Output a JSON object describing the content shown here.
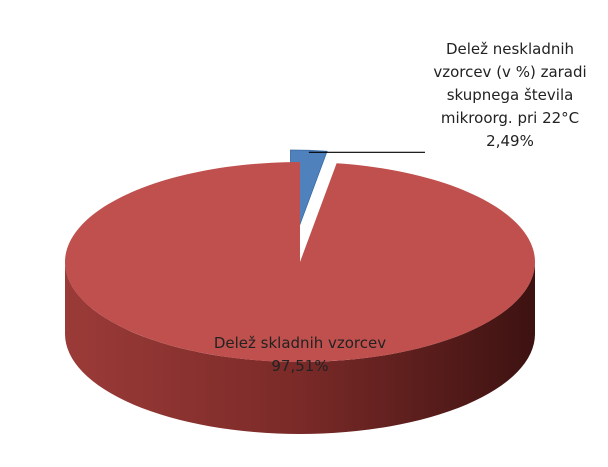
{
  "chart_data": {
    "type": "pie",
    "categories": [
      "Delež neskladnih vzorcev (v %) zaradi skupnega števila mikroorg. pri 22°C",
      "Delež skladnih vzorcev"
    ],
    "values": [
      2.49,
      97.51
    ],
    "value_labels": [
      "2,49%",
      "97,51%"
    ],
    "colors": [
      "#4f81bd",
      "#c0504d"
    ]
  }
}
